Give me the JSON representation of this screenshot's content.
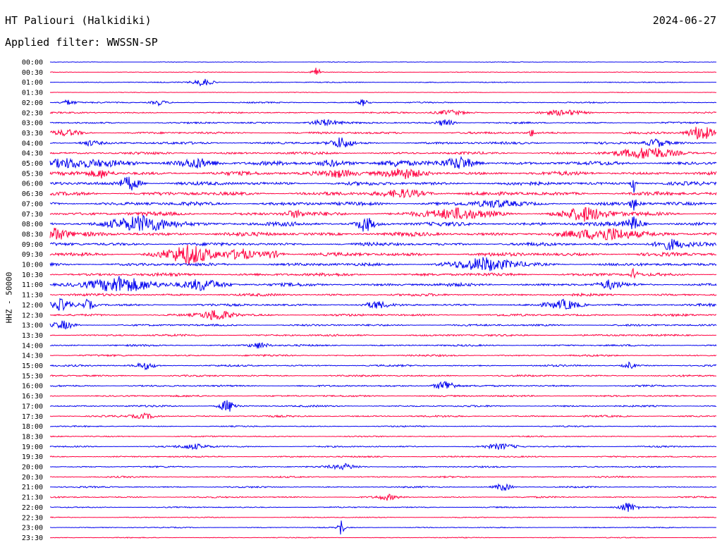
{
  "header": {
    "station": "HT Paliouri (Halkidiki)",
    "date": "2024-06-27",
    "filter": "Applied filter: WWSSN-SP"
  },
  "channel_label": "HHZ - 50000",
  "colors": {
    "even_row": "#0000ee",
    "odd_row": "#ff0040",
    "text": "#000000"
  },
  "chart_data": {
    "type": "line",
    "title": "HT Paliouri (Halkidiki)",
    "subtitle": "Applied filter: WWSSN-SP",
    "ylabel": "HHZ - 50000",
    "row_labels": [
      "00:00",
      "00:30",
      "01:00",
      "01:30",
      "02:00",
      "02:30",
      "03:00",
      "03:30",
      "04:00",
      "04:30",
      "05:00",
      "05:30",
      "06:00",
      "06:30",
      "07:00",
      "07:30",
      "08:00",
      "08:30",
      "09:00",
      "09:30",
      "10:00",
      "10:30",
      "11:00",
      "11:30",
      "12:00",
      "12:30",
      "13:00",
      "13:30",
      "14:00",
      "14:30",
      "15:00",
      "15:30",
      "16:00",
      "16:30",
      "17:00",
      "17:30",
      "18:00",
      "18:30",
      "19:00",
      "19:30",
      "20:00",
      "20:30",
      "21:00",
      "21:30",
      "22:00",
      "22:30",
      "23:00",
      "23:30"
    ],
    "row_minutes": 30,
    "noise_level": [
      0.5,
      0.6,
      0.8,
      0.5,
      1.0,
      1.2,
      1.4,
      1.8,
      2.0,
      2.0,
      3.0,
      3.0,
      2.8,
      3.0,
      3.0,
      3.0,
      3.2,
      3.2,
      2.6,
      3.0,
      2.5,
      2.5,
      2.5,
      2.0,
      2.0,
      1.8,
      1.6,
      1.6,
      1.4,
      1.4,
      1.4,
      1.4,
      1.4,
      1.4,
      1.4,
      1.4,
      1.0,
      1.0,
      1.2,
      1.2,
      1.2,
      1.2,
      1.2,
      1.2,
      1.0,
      0.8,
      0.8,
      0.7
    ],
    "bursts": [
      {
        "row": 1,
        "minute": 12.0,
        "amplitude": 9,
        "duration": 0.4
      },
      {
        "row": 2,
        "minute": 6.9,
        "amplitude": 6,
        "duration": 1.0
      },
      {
        "row": 4,
        "minute": 0.8,
        "amplitude": 4,
        "duration": 0.8
      },
      {
        "row": 4,
        "minute": 4.9,
        "amplitude": 4,
        "duration": 0.8
      },
      {
        "row": 4,
        "minute": 14.1,
        "amplitude": 5,
        "duration": 0.6
      },
      {
        "row": 5,
        "minute": 18.0,
        "amplitude": 4,
        "duration": 1.5
      },
      {
        "row": 5,
        "minute": 23.2,
        "amplitude": 4,
        "duration": 2.0
      },
      {
        "row": 6,
        "minute": 12.3,
        "amplitude": 5,
        "duration": 1.5
      },
      {
        "row": 6,
        "minute": 17.8,
        "amplitude": 6,
        "duration": 0.8
      },
      {
        "row": 7,
        "minute": 29.3,
        "amplitude": 12,
        "duration": 1.2
      },
      {
        "row": 7,
        "minute": 21.7,
        "amplitude": 6,
        "duration": 0.3
      },
      {
        "row": 7,
        "minute": 0.8,
        "amplitude": 4,
        "duration": 1.5
      },
      {
        "row": 8,
        "minute": 13.1,
        "amplitude": 8,
        "duration": 1.0
      },
      {
        "row": 8,
        "minute": 1.8,
        "amplitude": 4,
        "duration": 1.0
      },
      {
        "row": 9,
        "minute": 27.0,
        "amplitude": 9,
        "duration": 3.0
      },
      {
        "row": 8,
        "minute": 27.3,
        "amplitude": 6,
        "duration": 1.0
      },
      {
        "row": 10,
        "minute": 0.8,
        "amplitude": 7,
        "duration": 4.0
      },
      {
        "row": 10,
        "minute": 6.6,
        "amplitude": 7,
        "duration": 2.0
      },
      {
        "row": 10,
        "minute": 18.5,
        "amplitude": 9,
        "duration": 1.5
      },
      {
        "row": 10,
        "minute": 12.6,
        "amplitude": 5,
        "duration": 1.5
      },
      {
        "row": 10,
        "minute": 15.6,
        "amplitude": 5,
        "duration": 1.5
      },
      {
        "row": 11,
        "minute": 13.0,
        "amplitude": 6,
        "duration": 2.0
      },
      {
        "row": 11,
        "minute": 15.9,
        "amplitude": 6,
        "duration": 2.0
      },
      {
        "row": 11,
        "minute": 2.3,
        "amplitude": 6,
        "duration": 1.0
      },
      {
        "row": 12,
        "minute": 3.6,
        "amplitude": 11,
        "duration": 1.0
      },
      {
        "row": 12,
        "minute": 26.3,
        "amplitude": 14,
        "duration": 0.3
      },
      {
        "row": 13,
        "minute": 16.0,
        "amplitude": 5,
        "duration": 2.5
      },
      {
        "row": 14,
        "minute": 20.0,
        "amplitude": 5,
        "duration": 2.0
      },
      {
        "row": 14,
        "minute": 26.3,
        "amplitude": 9,
        "duration": 0.4
      },
      {
        "row": 15,
        "minute": 11.0,
        "amplitude": 5,
        "duration": 1.0
      },
      {
        "row": 15,
        "minute": 18.2,
        "amplitude": 8,
        "duration": 3.0
      },
      {
        "row": 15,
        "minute": 24.1,
        "amplitude": 10,
        "duration": 2.5
      },
      {
        "row": 16,
        "minute": 4.3,
        "amplitude": 12,
        "duration": 3.0
      },
      {
        "row": 16,
        "minute": 14.2,
        "amplitude": 12,
        "duration": 0.8
      },
      {
        "row": 16,
        "minute": 26.3,
        "amplitude": 10,
        "duration": 0.8
      },
      {
        "row": 17,
        "minute": 0.3,
        "amplitude": 10,
        "duration": 1.0
      },
      {
        "row": 17,
        "minute": 25.2,
        "amplitude": 10,
        "duration": 3.0
      },
      {
        "row": 18,
        "minute": 27.9,
        "amplitude": 8,
        "duration": 1.5
      },
      {
        "row": 19,
        "minute": 6.3,
        "amplitude": 14,
        "duration": 2.5
      },
      {
        "row": 19,
        "minute": 8.6,
        "amplitude": 8,
        "duration": 1.2
      },
      {
        "row": 19,
        "minute": 10.0,
        "amplitude": 6,
        "duration": 1.0
      },
      {
        "row": 20,
        "minute": 19.6,
        "amplitude": 10,
        "duration": 3.0
      },
      {
        "row": 21,
        "minute": 26.3,
        "amplitude": 10,
        "duration": 0.3
      },
      {
        "row": 22,
        "minute": 3.1,
        "amplitude": 11,
        "duration": 3.5
      },
      {
        "row": 22,
        "minute": 6.8,
        "amplitude": 9,
        "duration": 2.0
      },
      {
        "row": 22,
        "minute": 25.2,
        "amplitude": 6,
        "duration": 1.0
      },
      {
        "row": 24,
        "minute": 0.5,
        "amplitude": 8,
        "duration": 1.0
      },
      {
        "row": 24,
        "minute": 1.7,
        "amplitude": 8,
        "duration": 0.6
      },
      {
        "row": 24,
        "minute": 14.7,
        "amplitude": 5,
        "duration": 1.0
      },
      {
        "row": 24,
        "minute": 23.2,
        "amplitude": 7,
        "duration": 1.5
      },
      {
        "row": 25,
        "minute": 7.5,
        "amplitude": 9,
        "duration": 1.5
      },
      {
        "row": 26,
        "minute": 0.6,
        "amplitude": 6,
        "duration": 1.0
      },
      {
        "row": 28,
        "minute": 9.4,
        "amplitude": 5,
        "duration": 1.0
      },
      {
        "row": 30,
        "minute": 4.3,
        "amplitude": 5,
        "duration": 1.0
      },
      {
        "row": 30,
        "minute": 26.1,
        "amplitude": 5,
        "duration": 0.6
      },
      {
        "row": 32,
        "minute": 17.8,
        "amplitude": 9,
        "duration": 1.0
      },
      {
        "row": 34,
        "minute": 8.0,
        "amplitude": 10,
        "duration": 0.8
      },
      {
        "row": 35,
        "minute": 4.3,
        "amplitude": 4,
        "duration": 1.2
      },
      {
        "row": 38,
        "minute": 6.5,
        "amplitude": 4,
        "duration": 1.5
      },
      {
        "row": 38,
        "minute": 20.3,
        "amplitude": 4,
        "duration": 1.5
      },
      {
        "row": 40,
        "minute": 13.3,
        "amplitude": 4,
        "duration": 1.5
      },
      {
        "row": 42,
        "minute": 20.4,
        "amplitude": 6,
        "duration": 0.8
      },
      {
        "row": 43,
        "minute": 15.2,
        "amplitude": 4,
        "duration": 1.0
      },
      {
        "row": 44,
        "minute": 26.0,
        "amplitude": 8,
        "duration": 1.0
      },
      {
        "row": 46,
        "minute": 13.1,
        "amplitude": 14,
        "duration": 0.3
      }
    ]
  }
}
